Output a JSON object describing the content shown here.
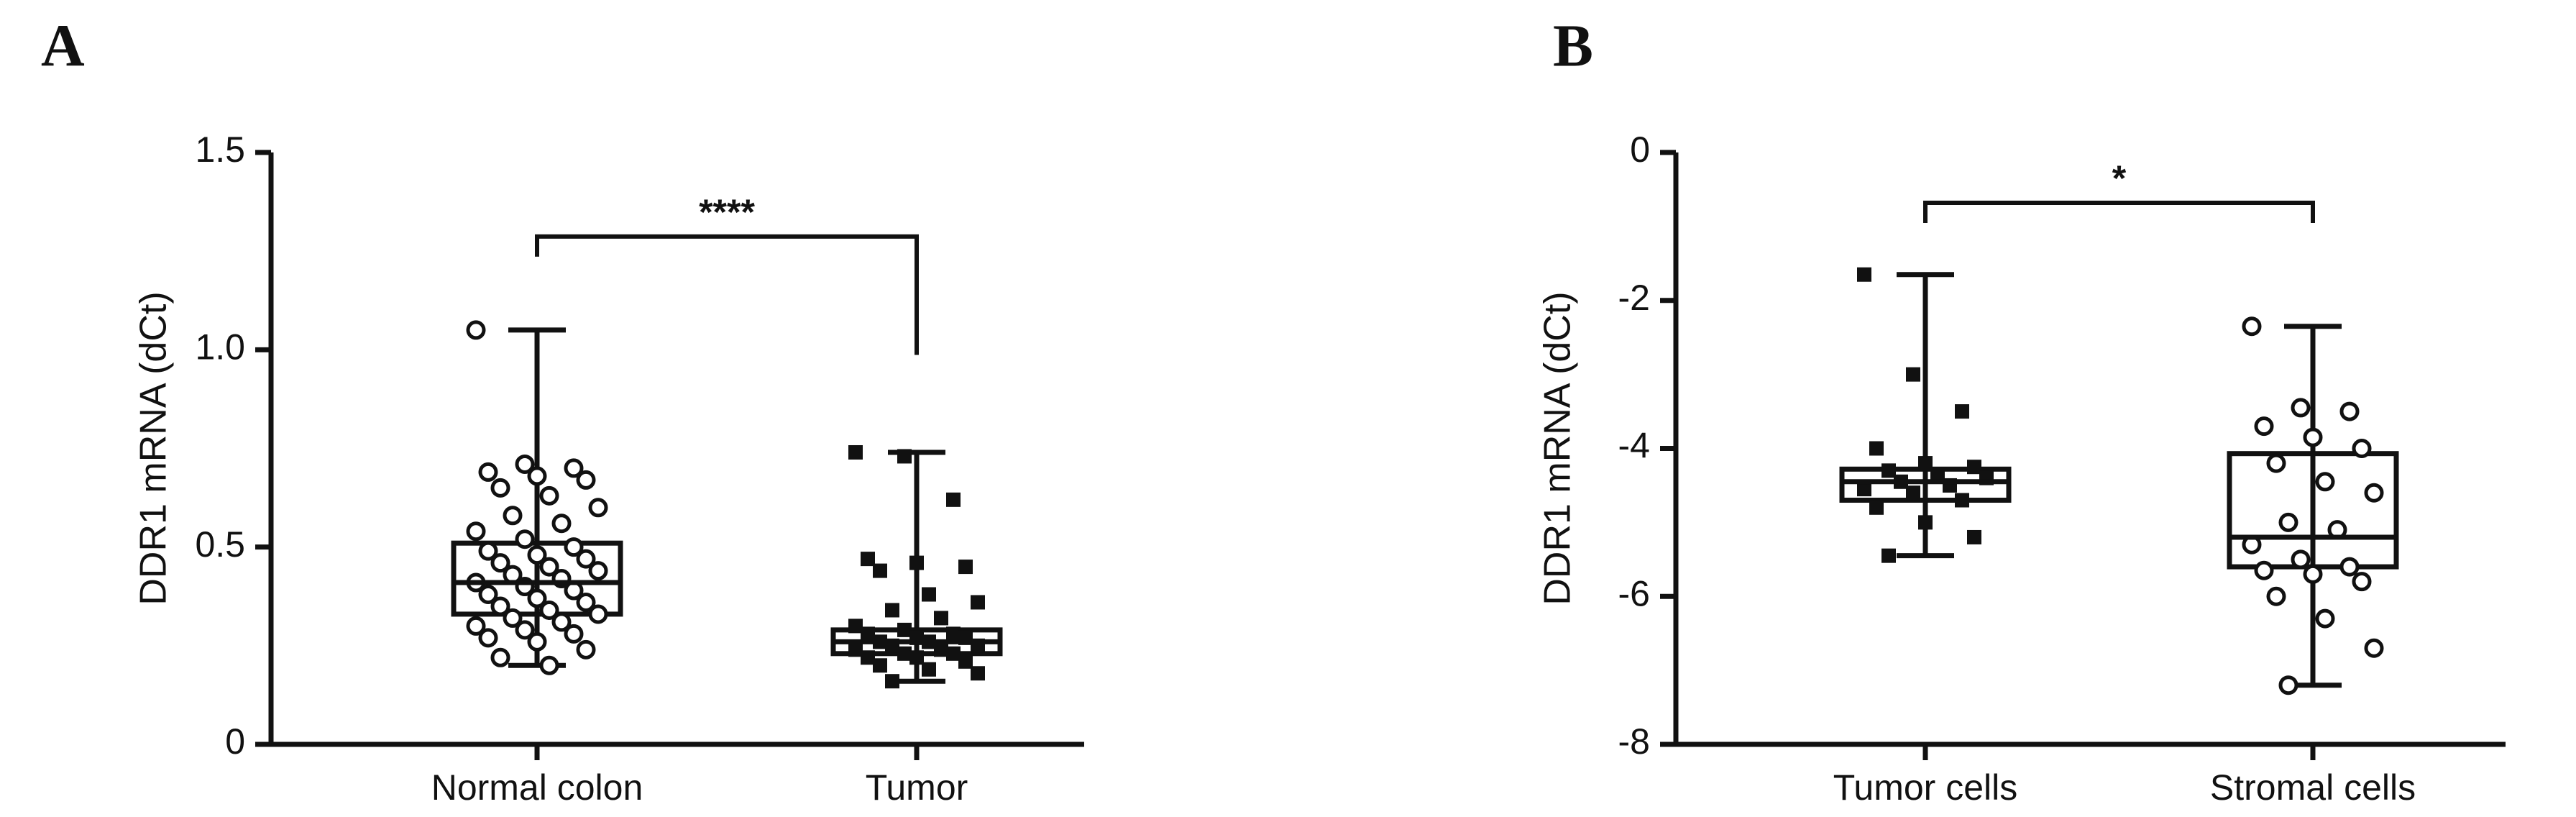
{
  "chart_data": [
    {
      "type": "box",
      "panel_label": "A",
      "ylabel": "DDR1 mRNA (dCt)",
      "annotation": "****",
      "categories": [
        "Normal colon",
        "Tumor"
      ],
      "markers": [
        "circle",
        "square"
      ],
      "boxes": [
        {
          "min": 0.2,
          "q1": 0.33,
          "median": 0.41,
          "q3": 0.51,
          "max": 1.05
        },
        {
          "min": 0.16,
          "q1": 0.23,
          "median": 0.26,
          "q3": 0.29,
          "max": 0.74
        }
      ],
      "points": [
        [
          1.05,
          0.71,
          0.7,
          0.69,
          0.68,
          0.67,
          0.65,
          0.63,
          0.6,
          0.58,
          0.56,
          0.54,
          0.52,
          0.5,
          0.49,
          0.48,
          0.47,
          0.46,
          0.45,
          0.44,
          0.43,
          0.42,
          0.41,
          0.4,
          0.39,
          0.38,
          0.37,
          0.36,
          0.35,
          0.34,
          0.33,
          0.32,
          0.31,
          0.3,
          0.29,
          0.28,
          0.27,
          0.26,
          0.24,
          0.22,
          0.2
        ],
        [
          0.74,
          0.73,
          0.62,
          0.47,
          0.46,
          0.45,
          0.44,
          0.38,
          0.36,
          0.34,
          0.32,
          0.3,
          0.29,
          0.28,
          0.28,
          0.27,
          0.27,
          0.26,
          0.26,
          0.25,
          0.25,
          0.24,
          0.24,
          0.23,
          0.23,
          0.22,
          0.22,
          0.21,
          0.2,
          0.19,
          0.18,
          0.16
        ]
      ],
      "ylim": [
        0,
        1.5
      ],
      "yticks": [
        0,
        0.5,
        {
          "value": 1,
          "label": "1.0"
        },
        1.5
      ]
    },
    {
      "type": "box",
      "panel_label": "B",
      "ylabel": "DDR1 mRNA (dCt)",
      "annotation": "*",
      "categories": [
        "Tumor cells",
        "Stromal cells"
      ],
      "markers": [
        "square",
        "circle"
      ],
      "boxes": [
        {
          "min": -5.45,
          "q1": -4.7,
          "median": -4.45,
          "q3": -4.28,
          "max": -1.65
        },
        {
          "min": -7.2,
          "q1": -5.6,
          "median": -5.2,
          "q3": -4.07,
          "max": -2.35
        }
      ],
      "points": [
        [
          -1.65,
          -3.0,
          -3.5,
          -4.0,
          -4.2,
          -4.25,
          -4.3,
          -4.35,
          -4.4,
          -4.45,
          -4.5,
          -4.55,
          -4.6,
          -4.7,
          -4.8,
          -5.0,
          -5.2,
          -5.45
        ],
        [
          -2.35,
          -3.45,
          -3.5,
          -3.7,
          -3.85,
          -4.0,
          -4.2,
          -4.45,
          -4.6,
          -5.0,
          -5.1,
          -5.3,
          -5.5,
          -5.6,
          -5.65,
          -5.7,
          -5.8,
          -6.0,
          -6.3,
          -6.7,
          -7.2
        ]
      ],
      "ylim": [
        -8,
        0
      ],
      "yticks": [
        0,
        -2,
        -4,
        -6,
        -8
      ]
    }
  ]
}
